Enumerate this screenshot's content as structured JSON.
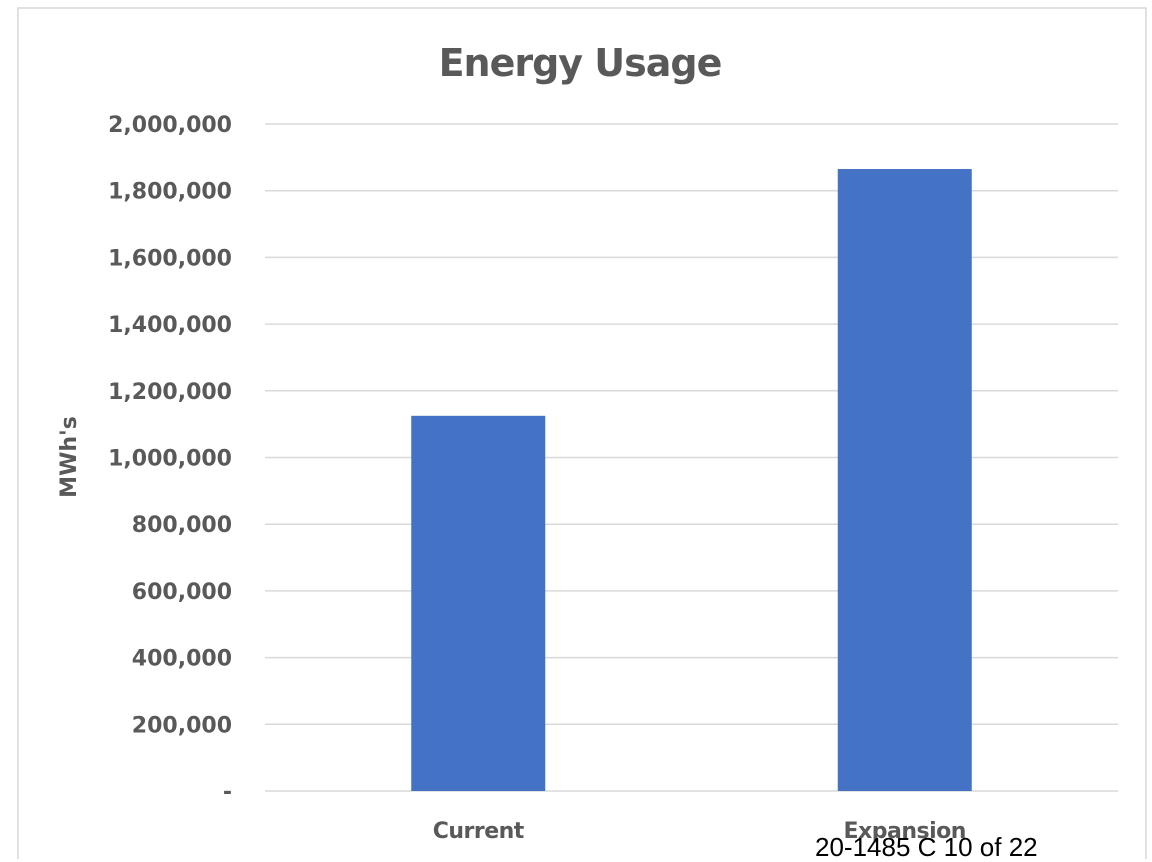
{
  "chart_data": {
    "type": "bar",
    "title": "Energy Usage",
    "xlabel": "",
    "ylabel": "MWh's",
    "categories": [
      "Current",
      "Expansion"
    ],
    "series": [
      {
        "values": [
          1125000,
          1865000
        ],
        "color": "#4472c4"
      }
    ],
    "ylim": [
      0,
      2000000
    ],
    "yticks": [
      0,
      200000,
      400000,
      600000,
      800000,
      1000000,
      1200000,
      1400000,
      1600000,
      1800000,
      2000000
    ],
    "ytick_labels": [
      "-",
      "200,000",
      "400,000",
      "600,000",
      "800,000",
      "1,000,000",
      "1,200,000",
      "1,400,000",
      "1,600,000",
      "1,800,000",
      "2,000,000"
    ],
    "grid": true,
    "legend": "none"
  },
  "footer": {
    "page_stamp": "20-1485 C 10 of 22"
  },
  "colors": {
    "bar": "#4472c4",
    "gridline": "#d9d9d9",
    "frame": "#d9d9d9",
    "text": "#595959"
  }
}
